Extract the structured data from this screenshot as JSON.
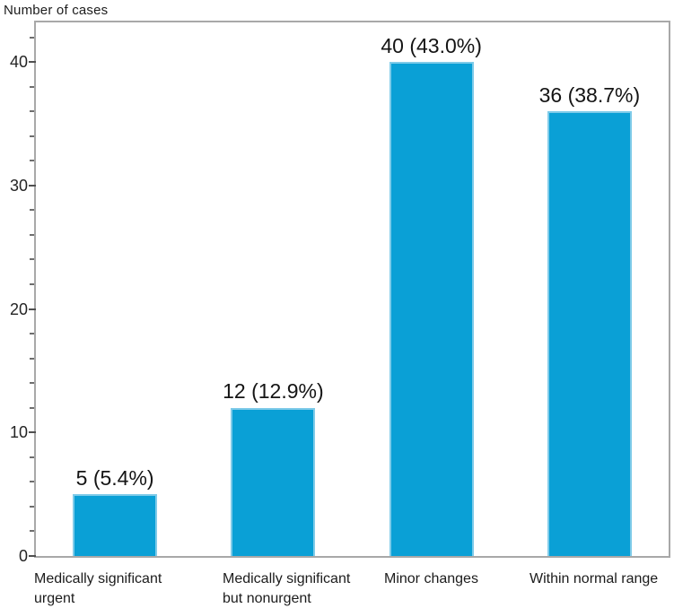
{
  "figure": {
    "y_axis_title": "Number of cases"
  },
  "colors": {
    "bar_fill": "#0aa0d6",
    "bar_border": "#7fcbe9",
    "frame": "#a8a8a8",
    "major_tick": "#4f4f4f",
    "minor_tick": "#6e6e6e",
    "text": "#1c1c1c"
  },
  "chart_data": {
    "type": "bar",
    "title": "",
    "ylabel": "Number of cases",
    "xlabel": "",
    "categories": [
      "Medically significant urgent",
      "Medically significant but nonurgent",
      "Minor changes",
      "Within normal range"
    ],
    "category_lines": [
      [
        "Medically significant",
        "urgent"
      ],
      [
        "Medically significant",
        "but nonurgent"
      ],
      [
        "Minor changes"
      ],
      [
        "Within normal range"
      ]
    ],
    "values": [
      5,
      12,
      40,
      36
    ],
    "percents": [
      5.4,
      12.9,
      43.0,
      38.7
    ],
    "value_labels": [
      "5 (5.4%)",
      "12 (12.9%)",
      "40 (43.0%)",
      "36 (38.7%)"
    ],
    "ylim": [
      0,
      43.2
    ],
    "y_major_ticks": [
      0,
      10,
      20,
      30,
      40
    ],
    "y_minor_tick_step": 2,
    "y_minor_tick_max": 42,
    "grid": false,
    "legend": "none"
  }
}
